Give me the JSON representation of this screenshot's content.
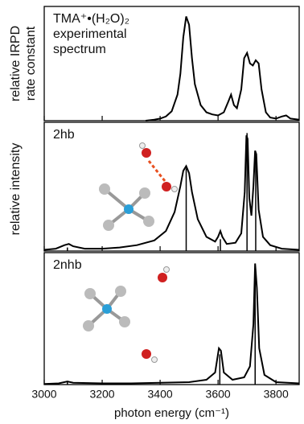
{
  "chart_data": [
    {
      "type": "line",
      "text": [
        "TMA⁺•(H₂O)₂",
        "experimental",
        "spectrum"
      ],
      "ylabel": [
        "relative IRPD",
        "rate constant"
      ],
      "xlim": [
        3000,
        3880
      ],
      "ylim": [
        0,
        1.05
      ],
      "xticks": [
        3000,
        3200,
        3400,
        3600,
        3800
      ],
      "x": [
        3350,
        3380,
        3400,
        3420,
        3440,
        3460,
        3470,
        3480,
        3490,
        3500,
        3510,
        3520,
        3540,
        3560,
        3580,
        3600,
        3620,
        3635,
        3645,
        3655,
        3665,
        3680,
        3690,
        3700,
        3710,
        3720,
        3730,
        3740,
        3750,
        3765,
        3780,
        3800,
        3820,
        3835,
        3850,
        3880
      ],
      "series": [
        {
          "color": "#000000",
          "values": [
            0.0,
            0.01,
            0.02,
            0.04,
            0.09,
            0.25,
            0.45,
            0.8,
            1.0,
            0.92,
            0.6,
            0.35,
            0.15,
            0.08,
            0.06,
            0.05,
            0.08,
            0.18,
            0.25,
            0.15,
            0.12,
            0.3,
            0.6,
            0.65,
            0.55,
            0.53,
            0.58,
            0.55,
            0.3,
            0.08,
            0.03,
            0.02,
            0.04,
            0.05,
            0.02,
            0.01
          ]
        }
      ]
    },
    {
      "type": "line",
      "text": [
        "2hb"
      ],
      "ylabel": [
        "relative intensity"
      ],
      "xlim": [
        3000,
        3880
      ],
      "ylim": [
        0,
        1.05
      ],
      "xticks": [
        3000,
        3200,
        3400,
        3600,
        3800
      ],
      "x": [
        3000,
        3040,
        3070,
        3085,
        3100,
        3140,
        3200,
        3260,
        3320,
        3380,
        3420,
        3450,
        3470,
        3480,
        3490,
        3500,
        3510,
        3530,
        3560,
        3590,
        3600,
        3608,
        3615,
        3630,
        3660,
        3680,
        3692,
        3698,
        3702,
        3708,
        3715,
        3722,
        3728,
        3732,
        3740,
        3755,
        3780,
        3820,
        3880
      ],
      "series": [
        {
          "color": "#000000",
          "values": [
            0.01,
            0.02,
            0.05,
            0.06,
            0.04,
            0.02,
            0.02,
            0.03,
            0.05,
            0.09,
            0.17,
            0.33,
            0.55,
            0.68,
            0.72,
            0.66,
            0.5,
            0.27,
            0.12,
            0.08,
            0.12,
            0.17,
            0.12,
            0.06,
            0.07,
            0.15,
            0.5,
            0.98,
            0.95,
            0.45,
            0.3,
            0.55,
            0.85,
            0.82,
            0.35,
            0.12,
            0.05,
            0.02,
            0.01
          ]
        }
      ],
      "sticks": {
        "x": [
          3080,
          3490,
          3608,
          3700,
          3730
        ],
        "values": [
          0.03,
          0.7,
          0.1,
          1.0,
          0.82
        ]
      }
    },
    {
      "type": "line",
      "text": [
        "2nhb"
      ],
      "xlabel": "photon energy (cm⁻¹)",
      "xlim": [
        3000,
        3880
      ],
      "ylim": [
        0,
        1.05
      ],
      "xticks": [
        3000,
        3200,
        3400,
        3600,
        3800
      ],
      "x": [
        3000,
        3050,
        3080,
        3100,
        3200,
        3300,
        3400,
        3500,
        3560,
        3590,
        3603,
        3610,
        3620,
        3650,
        3690,
        3710,
        3722,
        3728,
        3734,
        3742,
        3760,
        3800,
        3880
      ],
      "series": [
        {
          "color": "#000000",
          "values": [
            0.005,
            0.01,
            0.025,
            0.015,
            0.01,
            0.01,
            0.015,
            0.02,
            0.04,
            0.1,
            0.3,
            0.28,
            0.1,
            0.04,
            0.06,
            0.15,
            0.5,
            1.0,
            0.8,
            0.3,
            0.08,
            0.02,
            0.01
          ]
        }
      ],
      "sticks": {
        "x": [
          3080,
          3606,
          3728
        ],
        "values": [
          0.02,
          0.25,
          1.0
        ]
      }
    }
  ]
}
